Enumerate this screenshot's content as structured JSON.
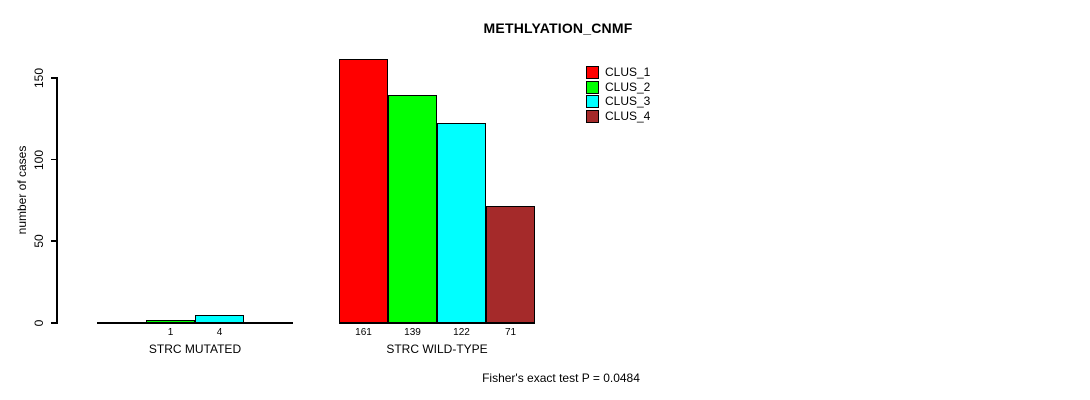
{
  "chart_data": {
    "type": "bar",
    "title": "METHLYATION_CNMF",
    "ylabel": "number of cases",
    "xlabel": "",
    "ylim": [
      0,
      165
    ],
    "yticks": [
      0,
      50,
      100,
      150
    ],
    "grid": false,
    "legend_position": "top-right",
    "categories": [
      "STRC MUTATED",
      "STRC WILD-TYPE"
    ],
    "series": [
      {
        "name": "CLUS_1",
        "color": "#FF0000",
        "values": [
          0,
          161
        ]
      },
      {
        "name": "CLUS_2",
        "color": "#00FF00",
        "values": [
          1,
          139
        ]
      },
      {
        "name": "CLUS_3",
        "color": "#00FFFF",
        "values": [
          4,
          122
        ]
      },
      {
        "name": "CLUS_4",
        "color": "#A52A2A",
        "values": [
          0,
          71
        ]
      }
    ],
    "bar_value_labels": [
      [
        "",
        "1",
        "4",
        ""
      ],
      [
        "161",
        "139",
        "122",
        "71"
      ]
    ],
    "show_zero_value_labels": false,
    "annotation": "Fisher's exact test P = 0.0484"
  }
}
